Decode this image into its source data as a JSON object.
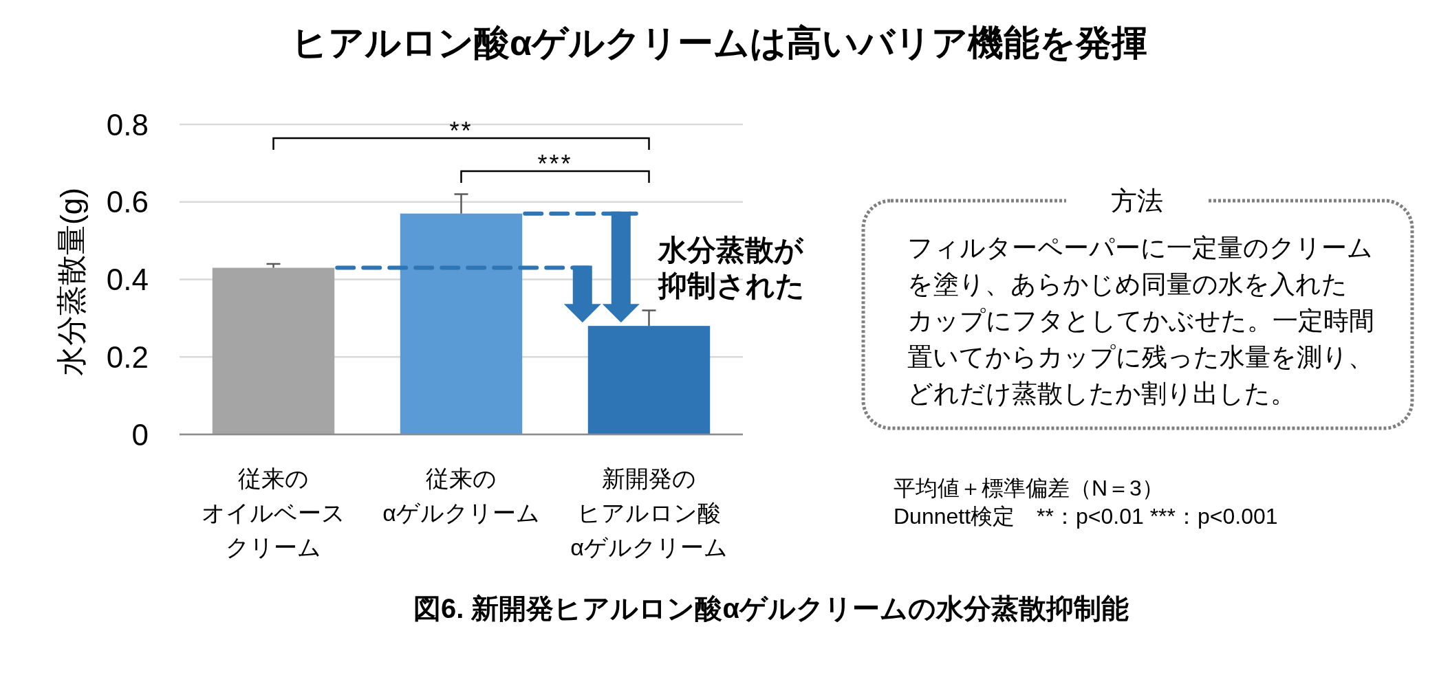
{
  "chart_data": {
    "type": "bar",
    "title": "ヒアルロン酸αゲルクリームは高いバリア機能を発揮",
    "ylabel": "水分蒸散量(g)",
    "categories": [
      "従来のオイルベースクリーム",
      "従来のαゲルクリーム",
      "新開発のヒアルロン酸αゲルクリーム"
    ],
    "values": [
      0.43,
      0.57,
      0.28
    ],
    "colors": [
      "#a5a5a5",
      "#5b9bd5",
      "#2e75b6"
    ],
    "errors": [
      [
        0.43,
        0.44
      ],
      [
        0.57,
        0.62
      ],
      [
        0.28,
        0.32
      ]
    ],
    "ylim": [
      0,
      0.8
    ],
    "yticks": [
      0,
      0.2,
      0.4,
      0.6,
      0.8
    ],
    "grid": "y",
    "ref_lines": [
      {
        "axis": "y",
        "value": 0.43,
        "color": "#2e75b6",
        "line_style": "dashed"
      },
      {
        "axis": "y",
        "value": 0.57,
        "color": "#2e75b6",
        "line_style": "dashed"
      }
    ],
    "annotations": [
      "**",
      "***",
      "水分蒸散が抑制された",
      "方法",
      "フィルターペーパーに一定量のクリームを塗り、あらかじめ同量の水を入れたカップにフタとしてかぶせた。一定時間置いてからカップに残った水量を測り、どれだけ蒸散したか割り出した。",
      "平均値＋標準偏差（N＝3）",
      "Dunnett検定　**：p<0.01 ***：p<0.001",
      "図6. 新開発ヒアルロン酸αゲルクリームの水分蒸散抑制能"
    ]
  }
}
